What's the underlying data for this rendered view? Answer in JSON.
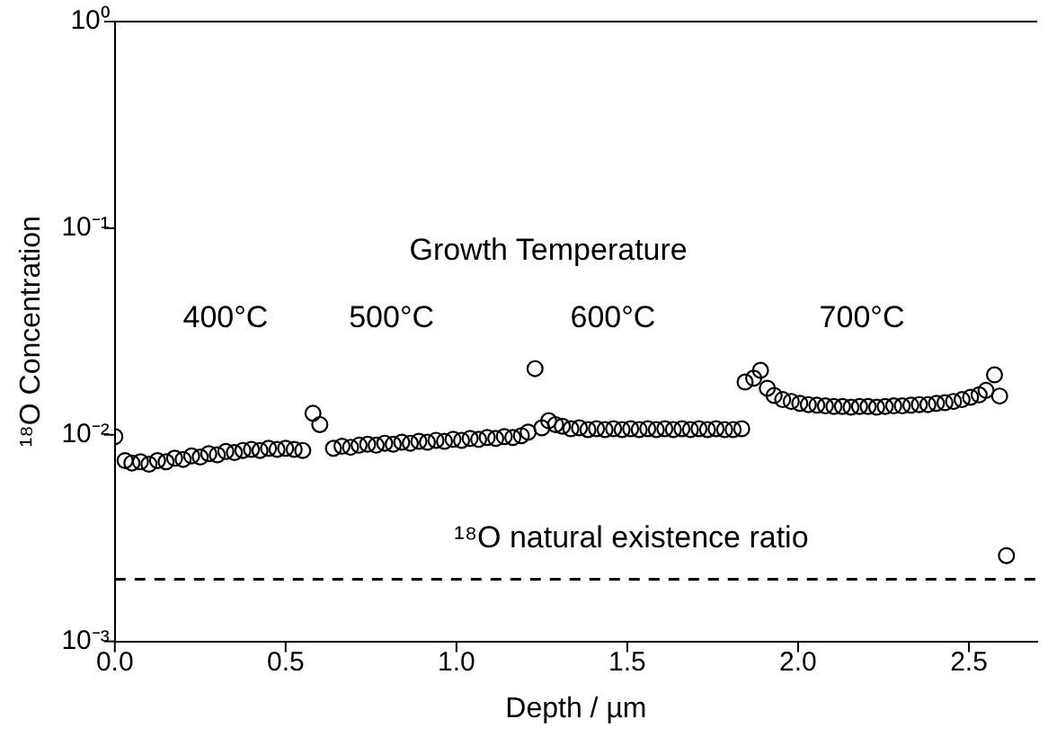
{
  "chart_data": {
    "type": "scatter",
    "xlabel": "Depth / µm",
    "ylabel": "¹⁸O Concentration",
    "x": [
      0,
      0.03,
      0.05,
      0.075,
      0.1,
      0.125,
      0.15,
      0.175,
      0.2,
      0.225,
      0.25,
      0.275,
      0.3,
      0.325,
      0.35,
      0.375,
      0.4,
      0.425,
      0.45,
      0.475,
      0.5,
      0.525,
      0.55,
      0.58,
      0.6,
      0.64,
      0.665,
      0.69,
      0.715,
      0.74,
      0.765,
      0.79,
      0.815,
      0.84,
      0.865,
      0.89,
      0.915,
      0.94,
      0.965,
      0.99,
      1.015,
      1.04,
      1.065,
      1.09,
      1.115,
      1.14,
      1.165,
      1.19,
      1.21,
      1.23,
      1.25,
      1.27,
      1.29,
      1.31,
      1.335,
      1.36,
      1.385,
      1.41,
      1.435,
      1.46,
      1.485,
      1.51,
      1.535,
      1.56,
      1.585,
      1.61,
      1.635,
      1.66,
      1.685,
      1.71,
      1.735,
      1.76,
      1.785,
      1.81,
      1.835,
      1.845,
      1.87,
      1.89,
      1.91,
      1.93,
      1.955,
      1.98,
      2.005,
      2.03,
      2.055,
      2.08,
      2.105,
      2.13,
      2.155,
      2.18,
      2.205,
      2.23,
      2.255,
      2.28,
      2.305,
      2.33,
      2.355,
      2.38,
      2.405,
      2.43,
      2.455,
      2.48,
      2.505,
      2.53,
      2.55,
      2.575,
      2.59,
      2.61
    ],
    "series": [
      {
        "color": "#000000",
        "values": [
          0.0098,
          0.0075,
          0.0073,
          0.0074,
          0.0072,
          0.0075,
          0.0074,
          0.0077,
          0.0076,
          0.0079,
          0.0078,
          0.0081,
          0.008,
          0.0083,
          0.0082,
          0.0084,
          0.0085,
          0.0084,
          0.0086,
          0.0085,
          0.0086,
          0.0085,
          0.0084,
          0.0127,
          0.0112,
          0.0086,
          0.0088,
          0.0087,
          0.0089,
          0.009,
          0.0089,
          0.0091,
          0.009,
          0.0092,
          0.0091,
          0.0093,
          0.0092,
          0.0094,
          0.0093,
          0.0095,
          0.0094,
          0.0096,
          0.0095,
          0.0097,
          0.0096,
          0.0098,
          0.0097,
          0.0099,
          0.0103,
          0.0209,
          0.0108,
          0.0117,
          0.0112,
          0.011,
          0.0107,
          0.0108,
          0.0106,
          0.0107,
          0.0106,
          0.0107,
          0.0106,
          0.0107,
          0.0106,
          0.0107,
          0.0106,
          0.0107,
          0.0106,
          0.0107,
          0.0106,
          0.0107,
          0.0106,
          0.0107,
          0.0106,
          0.0106,
          0.0107,
          0.018,
          0.0188,
          0.0205,
          0.0168,
          0.0155,
          0.0148,
          0.0145,
          0.0142,
          0.014,
          0.0139,
          0.0138,
          0.0137,
          0.0137,
          0.0136,
          0.0137,
          0.0137,
          0.0136,
          0.0137,
          0.0138,
          0.0138,
          0.0139,
          0.014,
          0.014,
          0.0142,
          0.0143,
          0.0145,
          0.0148,
          0.0152,
          0.0156,
          0.0164,
          0.0195,
          0.0154,
          0.0026
        ]
      }
    ],
    "xlim": [
      0,
      2.7
    ],
    "ylim": [
      0.001,
      1
    ],
    "log": "y",
    "xticks": [
      {
        "value": 0,
        "label": "0.0"
      },
      0.5,
      {
        "value": 1,
        "label": "1.0"
      },
      1.5,
      {
        "value": 2,
        "label": "2.0"
      },
      2.5
    ],
    "yticks": [
      {
        "value": 0.001,
        "label": "10⁻³"
      },
      {
        "value": 0.01,
        "label": "10⁻²"
      },
      {
        "value": 0.1,
        "label": "10⁻¹"
      },
      {
        "value": 1,
        "label": "10⁰"
      }
    ],
    "marker": "circle",
    "grid": false,
    "legend": false,
    "ref_lines": [
      {
        "axis": "y",
        "value": 0.002,
        "label": "¹⁸O natural existence ratio",
        "line_style": "dashed",
        "color": "#000000"
      }
    ],
    "annotations": [
      "Growth Temperature",
      "400°C",
      "500°C",
      "600°C",
      "700°C"
    ]
  }
}
